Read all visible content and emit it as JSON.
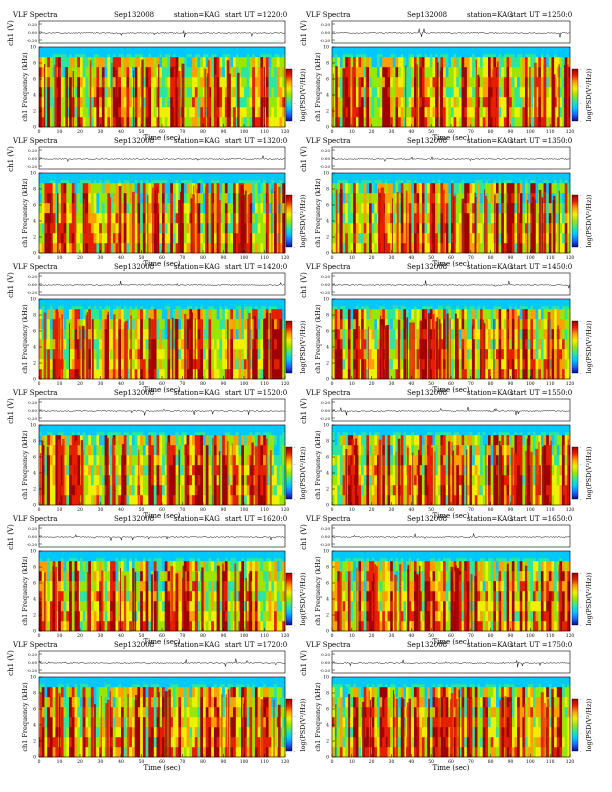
{
  "title": "VLF Spectra",
  "date": "Sep132008",
  "station_label": "station=KAG",
  "ut_prefix": "start  UT  =",
  "ch_label": "ch1 (V)",
  "y_label": "ch1\nFrequency  (kHz)",
  "x_label": "Time  (sec)",
  "cbar_label": "log(PSD(V²/Hz))",
  "colors": {
    "spectrogram_scale": [
      "#0a0a8c",
      "#1e64ff",
      "#00c8ff",
      "#2ce6a0",
      "#9be600",
      "#f0f000",
      "#ffa000",
      "#e61e00",
      "#a00000"
    ],
    "waveform": "#000000",
    "axis": "#000000"
  },
  "chart_data": [
    {
      "type": "heatmap",
      "start_ut": "1220:0",
      "xlim": [
        0,
        120
      ],
      "ylim": [
        0,
        10
      ],
      "wave_ticks": [
        "0.20",
        "0.00",
        "-0.20"
      ],
      "xticks": [
        0,
        10,
        20,
        30,
        40,
        50,
        60,
        70,
        80,
        90,
        100,
        110,
        120
      ],
      "yticks": [
        0,
        2,
        4,
        6,
        8,
        10
      ],
      "cbar_ticks": [
        "-",
        "-",
        "-",
        "-"
      ]
    },
    {
      "type": "heatmap",
      "start_ut": "1250:0",
      "xlim": [
        0,
        120
      ],
      "ylim": [
        0,
        10
      ],
      "wave_ticks": [
        "0.20",
        "0.00",
        "-0.20"
      ],
      "xticks": [
        0,
        10,
        20,
        30,
        40,
        50,
        60,
        70,
        80,
        90,
        100,
        110,
        120
      ],
      "yticks": [
        0,
        2,
        4,
        6,
        8,
        10
      ],
      "cbar_ticks": [
        "-",
        "-",
        "-",
        "-"
      ]
    },
    {
      "type": "heatmap",
      "start_ut": "1320:0",
      "xlim": [
        0,
        120
      ],
      "ylim": [
        0,
        10
      ],
      "wave_ticks": [
        "0.20",
        "0.00",
        "-0.20"
      ],
      "xticks": [
        0,
        10,
        20,
        30,
        40,
        50,
        60,
        70,
        80,
        90,
        100,
        110,
        120
      ],
      "yticks": [
        0,
        2,
        4,
        6,
        8,
        10
      ],
      "cbar_ticks": [
        "-",
        "-",
        "-",
        "-"
      ]
    },
    {
      "type": "heatmap",
      "start_ut": "1350:0",
      "xlim": [
        0,
        120
      ],
      "ylim": [
        0,
        10
      ],
      "wave_ticks": [
        "0.20",
        "0.00",
        "-0.20"
      ],
      "xticks": [
        0,
        10,
        20,
        30,
        40,
        50,
        60,
        70,
        80,
        90,
        100,
        110,
        120
      ],
      "yticks": [
        0,
        2,
        4,
        6,
        8,
        10
      ],
      "cbar_ticks": [
        "-",
        "-",
        "-",
        "-"
      ]
    },
    {
      "type": "heatmap",
      "start_ut": "1420:0",
      "xlim": [
        0,
        120
      ],
      "ylim": [
        0,
        10
      ],
      "wave_ticks": [
        "0.20",
        "0.00",
        "-0.20"
      ],
      "xticks": [
        0,
        10,
        20,
        30,
        40,
        50,
        60,
        70,
        80,
        90,
        100,
        110,
        120
      ],
      "yticks": [
        0,
        2,
        4,
        6,
        8,
        10
      ],
      "cbar_ticks": [
        "-",
        "-",
        "-",
        "-"
      ]
    },
    {
      "type": "heatmap",
      "start_ut": "1450:0",
      "xlim": [
        0,
        120
      ],
      "ylim": [
        0,
        10
      ],
      "wave_ticks": [
        "0.20",
        "0.00",
        "-0.20"
      ],
      "xticks": [
        0,
        10,
        20,
        30,
        40,
        50,
        60,
        70,
        80,
        90,
        100,
        110,
        120
      ],
      "yticks": [
        0,
        2,
        4,
        6,
        8,
        10
      ],
      "cbar_ticks": [
        "-",
        "-",
        "-",
        "-"
      ]
    },
    {
      "type": "heatmap",
      "start_ut": "1520:0",
      "xlim": [
        0,
        120
      ],
      "ylim": [
        0,
        10
      ],
      "wave_ticks": [
        "0.20",
        "0.00",
        "-0.20"
      ],
      "xticks": [
        0,
        10,
        20,
        30,
        40,
        50,
        60,
        70,
        80,
        90,
        100,
        110,
        120
      ],
      "yticks": [
        0,
        2,
        4,
        6,
        8,
        10
      ],
      "cbar_ticks": [
        "-",
        "-",
        "-",
        "-"
      ]
    },
    {
      "type": "heatmap",
      "start_ut": "1550:0",
      "xlim": [
        0,
        120
      ],
      "ylim": [
        0,
        10
      ],
      "wave_ticks": [
        "0.20",
        "0.00",
        "-0.20"
      ],
      "xticks": [
        0,
        10,
        20,
        30,
        40,
        50,
        60,
        70,
        80,
        90,
        100,
        110,
        120
      ],
      "yticks": [
        0,
        2,
        4,
        6,
        8,
        10
      ],
      "cbar_ticks": [
        "-",
        "-",
        "-",
        "-"
      ]
    },
    {
      "type": "heatmap",
      "start_ut": "1620:0",
      "xlim": [
        0,
        120
      ],
      "ylim": [
        0,
        10
      ],
      "wave_ticks": [
        "0.20",
        "0.00",
        "-0.20"
      ],
      "xticks": [
        0,
        10,
        20,
        30,
        40,
        50,
        60,
        70,
        80,
        90,
        100,
        110,
        120
      ],
      "yticks": [
        0,
        2,
        4,
        6,
        8,
        10
      ],
      "cbar_ticks": [
        "-",
        "-",
        "-",
        "-"
      ]
    },
    {
      "type": "heatmap",
      "start_ut": "1650:0",
      "xlim": [
        0,
        120
      ],
      "ylim": [
        0,
        10
      ],
      "wave_ticks": [
        "0.20",
        "0.00",
        "-0.20"
      ],
      "xticks": [
        0,
        10,
        20,
        30,
        40,
        50,
        60,
        70,
        80,
        90,
        100,
        110,
        120
      ],
      "yticks": [
        0,
        2,
        4,
        6,
        8,
        10
      ],
      "cbar_ticks": [
        "-",
        "-",
        "-",
        "-"
      ]
    },
    {
      "type": "heatmap",
      "start_ut": "1720:0",
      "xlim": [
        0,
        120
      ],
      "ylim": [
        0,
        10
      ],
      "wave_ticks": [
        "0.20",
        "0.00",
        "-0.20"
      ],
      "xticks": [
        0,
        10,
        20,
        30,
        40,
        50,
        60,
        70,
        80,
        90,
        100,
        110,
        120
      ],
      "yticks": [
        0,
        2,
        4,
        6,
        8,
        10
      ],
      "cbar_ticks": [
        "-",
        "-",
        "-",
        "-"
      ]
    },
    {
      "type": "heatmap",
      "start_ut": "1750:0",
      "xlim": [
        0,
        120
      ],
      "ylim": [
        0,
        10
      ],
      "wave_ticks": [
        "0.20",
        "0.00",
        "-0.20"
      ],
      "xticks": [
        0,
        10,
        20,
        30,
        40,
        50,
        60,
        70,
        80,
        90,
        100,
        110,
        120
      ],
      "yticks": [
        0,
        2,
        4,
        6,
        8,
        10
      ],
      "cbar_ticks": [
        "-",
        "-",
        "-",
        "-"
      ]
    }
  ]
}
